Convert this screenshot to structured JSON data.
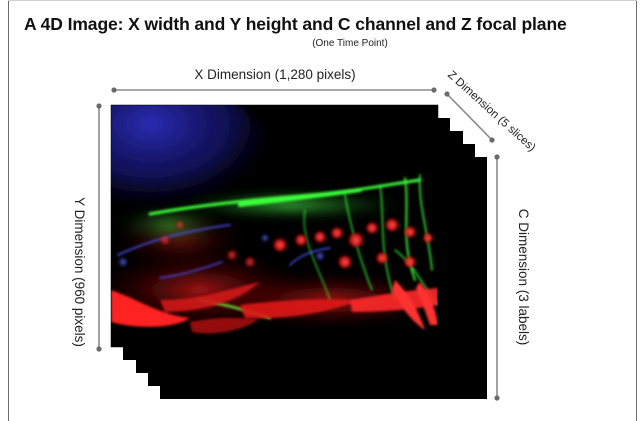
{
  "diagram": {
    "title": "A 4D Image: X width and Y height and C channel and Z focal plane",
    "subtitle": "(One Time Point)",
    "x_dimension_label": "X Dimension (1,280 pixels)",
    "y_dimension_label": "Y Dimension (960 pixels)",
    "z_dimension_label": "Z Dimension (5 slices)",
    "c_dimension_label": "C Dimension (3 labels)",
    "image_description": "fluorescence-microscopy-stack",
    "channel_colors": [
      "#ff1e1e",
      "#2aff2a",
      "#3a3aff"
    ],
    "background_color": "#000000"
  }
}
